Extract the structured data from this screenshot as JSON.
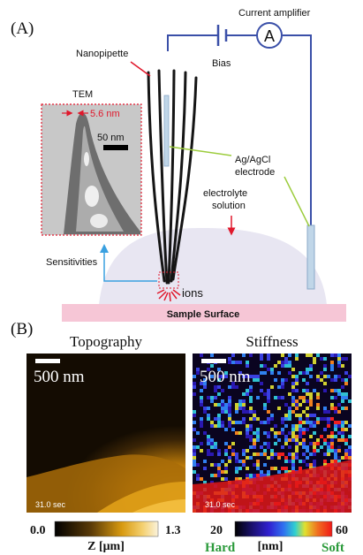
{
  "panel_a": {
    "label": "(A)",
    "labels": {
      "current_amplifier": "Current amplifier",
      "amplifier_symbol": "A",
      "bias": "Bias",
      "nanopipette": "Nanopipette",
      "tem": "TEM",
      "tip_size": "5.6 nm",
      "scale_bar": "50 nm",
      "electrode_line1": "Ag/AgCl",
      "electrode_line2": "electrode",
      "electrolyte_line1": "electrolyte",
      "electrolyte_line2": "solution",
      "sensitivities": "Sensitivities",
      "ions": "ions",
      "sample_surface": "Sample Surface"
    }
  },
  "panel_b": {
    "label": "(B)",
    "topography": {
      "title": "Topography",
      "scale_bar": "500 nm",
      "timestamp": "31.0 sec",
      "colorbar_min": "0.0",
      "colorbar_max": "1.3",
      "colorbar_unit": "Z [μm]"
    },
    "stiffness": {
      "title": "Stiffness",
      "scale_bar": "500 nm",
      "timestamp": "31.0 sec",
      "colorbar_min": "20",
      "colorbar_max": "60",
      "colorbar_unit": "[nm]",
      "hard_label": "Hard",
      "soft_label": "Soft"
    }
  },
  "colors": {
    "circuit_wire": "#3a4fa8",
    "red_annotation": "#e0182c",
    "green_leader": "#9ccc3c",
    "blue_arrow": "#3aa0e0",
    "sample_surface": "#f6c6d6",
    "electrolyte": "#e8e6f2",
    "hard_green": "#2a9a3a",
    "soft_green": "#2a9a3a"
  }
}
